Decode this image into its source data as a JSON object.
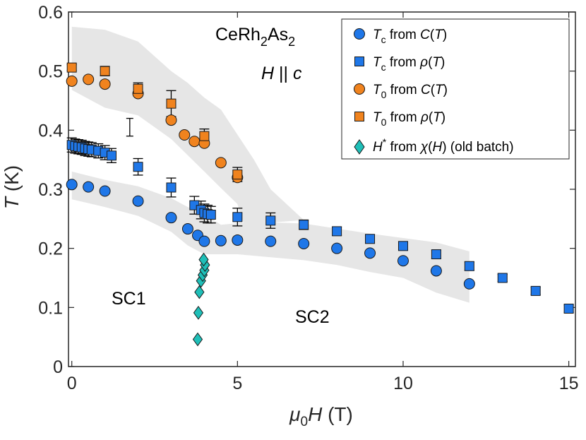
{
  "chart_data": {
    "type": "scatter",
    "title": "",
    "xlabel": {
      "pre": "μ",
      "sub": "0",
      "var": "H",
      "post": " (T)"
    },
    "ylabel": {
      "var": "T",
      "post": " (K)"
    },
    "xlim": [
      -0.1,
      15.2
    ],
    "ylim": [
      0,
      0.6
    ],
    "xticks": [
      0,
      5,
      10,
      15
    ],
    "xtick_labels": [
      "0",
      "5",
      "10",
      "15"
    ],
    "yticks": [
      0,
      0.1,
      0.2,
      0.3,
      0.4,
      0.5,
      0.6
    ],
    "ytick_labels": [
      "0",
      "0.1",
      "0.2",
      "0.3",
      "0.4",
      "0.5",
      "0.6"
    ],
    "grid": false,
    "legend_position": "top-right",
    "annotations": {
      "compound": {
        "a": "CeRh",
        "b": "2",
        "c": "As",
        "d": "2"
      },
      "field_dir": {
        "var": "H",
        "mid": " || ",
        "var2": "c"
      },
      "sc1": "SC1",
      "sc2": "SC2"
    },
    "series": [
      {
        "id": "tc_C",
        "name": {
          "var": "T",
          "sub": "c",
          "mid": " from ",
          "fn": "C",
          "arg": "T"
        },
        "marker": "circle",
        "color": "#1f77e8",
        "x": [
          0,
          0.5,
          1,
          2,
          3,
          3.5,
          3.8,
          4,
          4.5,
          5,
          6,
          7,
          8,
          9,
          10,
          11,
          12
        ],
        "y": [
          0.308,
          0.304,
          0.297,
          0.28,
          0.252,
          0.233,
          0.222,
          0.212,
          0.213,
          0.214,
          0.212,
          0.208,
          0.2,
          0.192,
          0.179,
          0.162,
          0.14
        ]
      },
      {
        "id": "tc_rho",
        "name": {
          "var": "T",
          "sub": "c",
          "mid": " from ",
          "fn": "ρ",
          "arg": "T"
        },
        "marker": "square",
        "color": "#1f77e8",
        "x": [
          0,
          0.1,
          0.2,
          0.3,
          0.4,
          0.5,
          0.6,
          0.8,
          1.0,
          1.2,
          2,
          3,
          3.7,
          3.9,
          4.0,
          4.1,
          4.2,
          5,
          6,
          7,
          8,
          9,
          10,
          11,
          12,
          13,
          14,
          15
        ],
        "y": [
          0.375,
          0.373,
          0.372,
          0.371,
          0.369,
          0.368,
          0.367,
          0.365,
          0.362,
          0.357,
          0.338,
          0.303,
          0.273,
          0.265,
          0.26,
          0.258,
          0.257,
          0.253,
          0.247,
          0.24,
          0.229,
          0.216,
          0.204,
          0.19,
          0.17,
          0.15,
          0.128,
          0.098
        ],
        "err": [
          0.012,
          0.012,
          0.012,
          0.012,
          0.012,
          0.012,
          0.012,
          0.012,
          0.012,
          0.012,
          0.014,
          0.016,
          0.015,
          0.015,
          0.015,
          0.015,
          0.014,
          0.015,
          0.013,
          0.008,
          0.007,
          0.007,
          0.007,
          0.007,
          0.007,
          0.006,
          0.006,
          0.006
        ]
      },
      {
        "id": "t0_C",
        "name": {
          "var": "T",
          "sub": "0",
          "mid": " from ",
          "fn": "C",
          "arg": "T"
        },
        "marker": "circle",
        "color": "#f0831e",
        "x": [
          0,
          0.5,
          1,
          2,
          3,
          3.4,
          3.7,
          4.0,
          4.5,
          5
        ],
        "y": [
          0.483,
          0.486,
          0.478,
          0.462,
          0.417,
          0.392,
          0.381,
          0.378,
          0.345,
          0.32
        ]
      },
      {
        "id": "t0_rho",
        "name": {
          "var": "T",
          "sub": "0",
          "mid": " from ",
          "fn": "ρ",
          "arg": "T"
        },
        "marker": "square",
        "color": "#f0831e",
        "x": [
          0,
          1,
          2,
          3,
          4,
          5
        ],
        "y": [
          0.506,
          0.5,
          0.47,
          0.445,
          0.39,
          0.325
        ],
        "err": [
          0.005,
          0.008,
          0.01,
          0.022,
          0.012,
          0.012
        ]
      },
      {
        "id": "hstar_chi",
        "name": {
          "var": "H",
          "sup": "*",
          "mid": " from ",
          "fn": "χ",
          "arg": "H",
          "post": " (old batch)"
        },
        "marker": "diamond",
        "color": "#1fbfb8",
        "x": [
          3.8,
          3.82,
          3.85,
          3.9,
          3.95,
          4.0,
          4.02,
          3.98
        ],
        "y": [
          0.046,
          0.091,
          0.126,
          0.145,
          0.155,
          0.163,
          0.172,
          0.181
        ]
      }
    ],
    "error_bar_reference": {
      "x": 1.75,
      "y": 0.405,
      "err": 0.015
    },
    "shaded_bands": [
      {
        "upper": [
          [
            0,
            0.575
          ],
          [
            1,
            0.57
          ],
          [
            2,
            0.55
          ],
          [
            3,
            0.5
          ],
          [
            3.5,
            0.48
          ],
          [
            4,
            0.455
          ],
          [
            4.5,
            0.435
          ],
          [
            5.5,
            0.35
          ],
          [
            6,
            0.3
          ],
          [
            7,
            0.248
          ]
        ],
        "lower": [
          [
            0,
            0.468
          ],
          [
            1,
            0.438
          ],
          [
            2,
            0.425
          ],
          [
            3,
            0.385
          ],
          [
            4,
            0.33
          ],
          [
            4.5,
            0.302
          ],
          [
            5,
            0.275
          ],
          [
            5.2,
            0.24
          ],
          [
            5.4,
            0.241
          ]
        ]
      },
      {
        "upper": [
          [
            0,
            0.33
          ],
          [
            1,
            0.316
          ],
          [
            2,
            0.305
          ],
          [
            3,
            0.285
          ],
          [
            3.5,
            0.27
          ],
          [
            4,
            0.258
          ],
          [
            4.5,
            0.24
          ],
          [
            5.5,
            0.245
          ],
          [
            7,
            0.242
          ],
          [
            9,
            0.225
          ],
          [
            11,
            0.21
          ],
          [
            12,
            0.195
          ]
        ],
        "lower": [
          [
            0,
            0.283
          ],
          [
            1,
            0.27
          ],
          [
            2,
            0.255
          ],
          [
            3,
            0.228
          ],
          [
            3.5,
            0.205
          ],
          [
            4,
            0.19
          ],
          [
            5,
            0.19
          ],
          [
            6,
            0.185
          ],
          [
            7,
            0.18
          ],
          [
            8,
            0.172
          ],
          [
            9,
            0.16
          ],
          [
            10,
            0.15
          ],
          [
            11,
            0.125
          ],
          [
            12,
            0.108
          ]
        ]
      }
    ]
  }
}
